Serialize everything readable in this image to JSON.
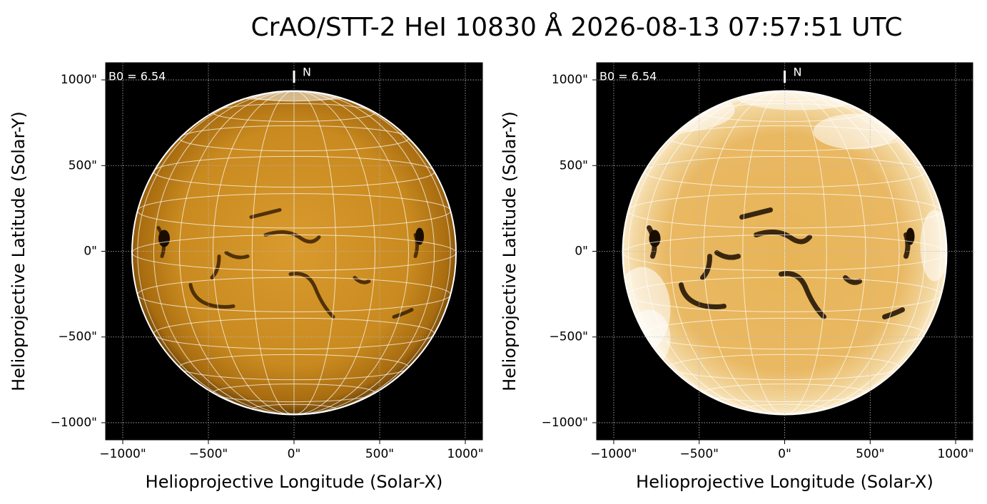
{
  "title": "CrAO/STT-2 HeI 10830 Å 2026-08-13 07:57:51 UTC",
  "chart_data": [
    {
      "type": "image",
      "xlabel": "Helioprojective Longitude (Solar-X)",
      "ylabel": "Helioprojective Latitude (Solar-Y)",
      "xlim": [
        -1100,
        1100
      ],
      "ylim": [
        -1100,
        1100
      ],
      "xticks": [
        {
          "value": -1000,
          "label": "−1000\""
        },
        {
          "value": -500,
          "label": "−500\""
        },
        {
          "value": 0,
          "label": "0\""
        },
        {
          "value": 500,
          "label": "500\""
        },
        {
          "value": 1000,
          "label": "1000\""
        }
      ],
      "yticks": [
        {
          "value": -1000,
          "label": "−1000\""
        },
        {
          "value": -500,
          "label": "−500\""
        },
        {
          "value": 0,
          "label": "0\""
        },
        {
          "value": 500,
          "label": "500\""
        },
        {
          "value": 1000,
          "label": "1000\""
        }
      ],
      "grid": true,
      "annotations": [
        "B0 = 6.54",
        "N"
      ]
    },
    {
      "type": "image",
      "xlabel": "Helioprojective Longitude (Solar-X)",
      "ylabel": "Helioprojective Latitude (Solar-Y)",
      "xlim": [
        -1100,
        1100
      ],
      "ylim": [
        -1100,
        1100
      ],
      "xticks": [
        {
          "value": -1000,
          "label": "−1000\""
        },
        {
          "value": -500,
          "label": "−500\""
        },
        {
          "value": 0,
          "label": "0\""
        },
        {
          "value": 500,
          "label": "500\""
        },
        {
          "value": 1000,
          "label": "1000\""
        }
      ],
      "yticks": [
        {
          "value": -1000,
          "label": "−1000\""
        },
        {
          "value": -500,
          "label": "−500\""
        },
        {
          "value": 0,
          "label": "0\""
        },
        {
          "value": 500,
          "label": "500\""
        },
        {
          "value": 1000,
          "label": "1000\""
        }
      ],
      "grid": true,
      "annotations": [
        "B0 = 6.54",
        "N"
      ]
    }
  ]
}
